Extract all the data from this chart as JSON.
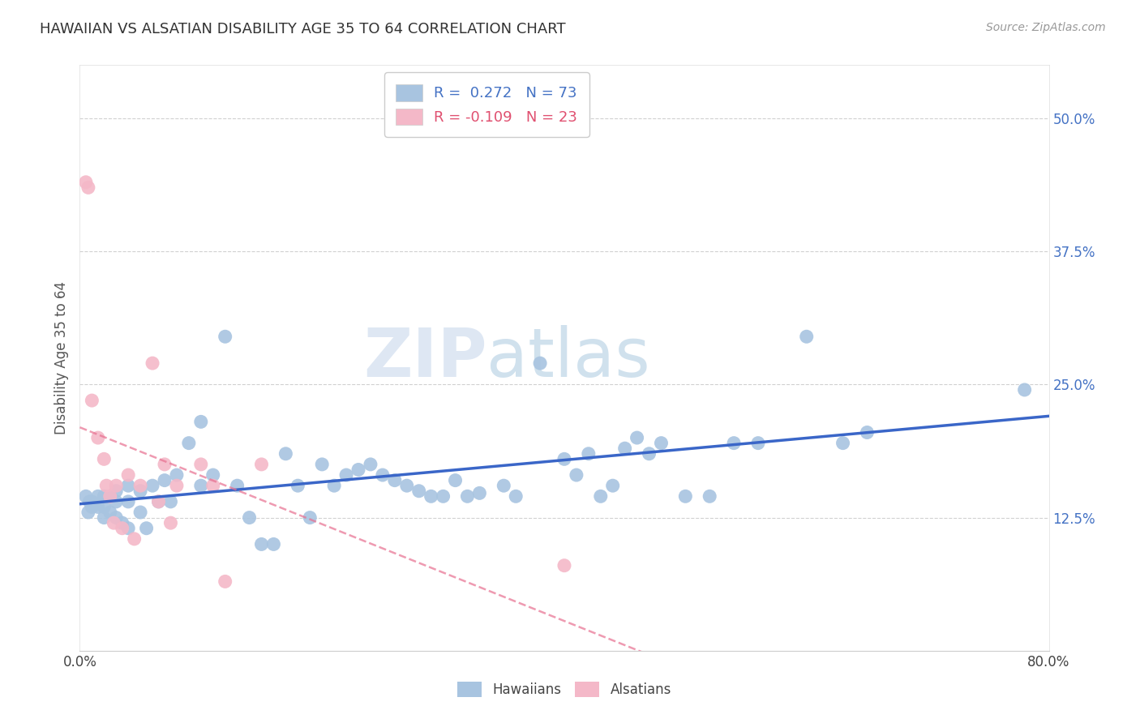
{
  "title": "HAWAIIAN VS ALSATIAN DISABILITY AGE 35 TO 64 CORRELATION CHART",
  "source": "Source: ZipAtlas.com",
  "ylabel": "Disability Age 35 to 64",
  "xlim": [
    0.0,
    0.8
  ],
  "ylim": [
    0.0,
    0.55
  ],
  "xtick_labels": [
    "0.0%",
    "",
    "",
    "",
    "",
    "",
    "",
    "",
    "80.0%"
  ],
  "xtick_vals": [
    0.0,
    0.1,
    0.2,
    0.3,
    0.4,
    0.5,
    0.6,
    0.7,
    0.8
  ],
  "ytick_labels": [
    "12.5%",
    "25.0%",
    "37.5%",
    "50.0%"
  ],
  "ytick_vals": [
    0.125,
    0.25,
    0.375,
    0.5
  ],
  "hawaiian_color": "#a8c4e0",
  "alsatian_color": "#f4b8c8",
  "hawaiian_line_color": "#3a66c8",
  "alsatian_line_color": "#e87090",
  "watermark_zip": "ZIP",
  "watermark_atlas": "atlas",
  "r_hawaiian": 0.272,
  "n_hawaiian": 73,
  "r_alsatian": -0.109,
  "n_alsatian": 23,
  "hawaiian_x": [
    0.005,
    0.007,
    0.008,
    0.01,
    0.01,
    0.015,
    0.015,
    0.02,
    0.02,
    0.02,
    0.025,
    0.025,
    0.03,
    0.03,
    0.03,
    0.035,
    0.04,
    0.04,
    0.04,
    0.05,
    0.05,
    0.055,
    0.06,
    0.065,
    0.07,
    0.075,
    0.08,
    0.09,
    0.1,
    0.1,
    0.11,
    0.12,
    0.13,
    0.14,
    0.15,
    0.16,
    0.17,
    0.18,
    0.19,
    0.2,
    0.21,
    0.22,
    0.23,
    0.24,
    0.25,
    0.26,
    0.27,
    0.28,
    0.29,
    0.3,
    0.31,
    0.32,
    0.33,
    0.35,
    0.36,
    0.38,
    0.4,
    0.41,
    0.42,
    0.43,
    0.44,
    0.45,
    0.46,
    0.47,
    0.48,
    0.5,
    0.52,
    0.54,
    0.56,
    0.6,
    0.63,
    0.65,
    0.78
  ],
  "hawaiian_y": [
    0.145,
    0.13,
    0.14,
    0.14,
    0.135,
    0.145,
    0.135,
    0.145,
    0.135,
    0.125,
    0.145,
    0.13,
    0.15,
    0.14,
    0.125,
    0.12,
    0.155,
    0.14,
    0.115,
    0.15,
    0.13,
    0.115,
    0.155,
    0.14,
    0.16,
    0.14,
    0.165,
    0.195,
    0.215,
    0.155,
    0.165,
    0.295,
    0.155,
    0.125,
    0.1,
    0.1,
    0.185,
    0.155,
    0.125,
    0.175,
    0.155,
    0.165,
    0.17,
    0.175,
    0.165,
    0.16,
    0.155,
    0.15,
    0.145,
    0.145,
    0.16,
    0.145,
    0.148,
    0.155,
    0.145,
    0.27,
    0.18,
    0.165,
    0.185,
    0.145,
    0.155,
    0.19,
    0.2,
    0.185,
    0.195,
    0.145,
    0.145,
    0.195,
    0.195,
    0.295,
    0.195,
    0.205,
    0.245
  ],
  "alsatian_x": [
    0.005,
    0.007,
    0.01,
    0.015,
    0.02,
    0.022,
    0.025,
    0.028,
    0.03,
    0.035,
    0.04,
    0.045,
    0.05,
    0.06,
    0.065,
    0.07,
    0.075,
    0.08,
    0.1,
    0.11,
    0.12,
    0.15,
    0.4
  ],
  "alsatian_y": [
    0.44,
    0.435,
    0.235,
    0.2,
    0.18,
    0.155,
    0.145,
    0.12,
    0.155,
    0.115,
    0.165,
    0.105,
    0.155,
    0.27,
    0.14,
    0.175,
    0.12,
    0.155,
    0.175,
    0.155,
    0.065,
    0.175,
    0.08
  ]
}
